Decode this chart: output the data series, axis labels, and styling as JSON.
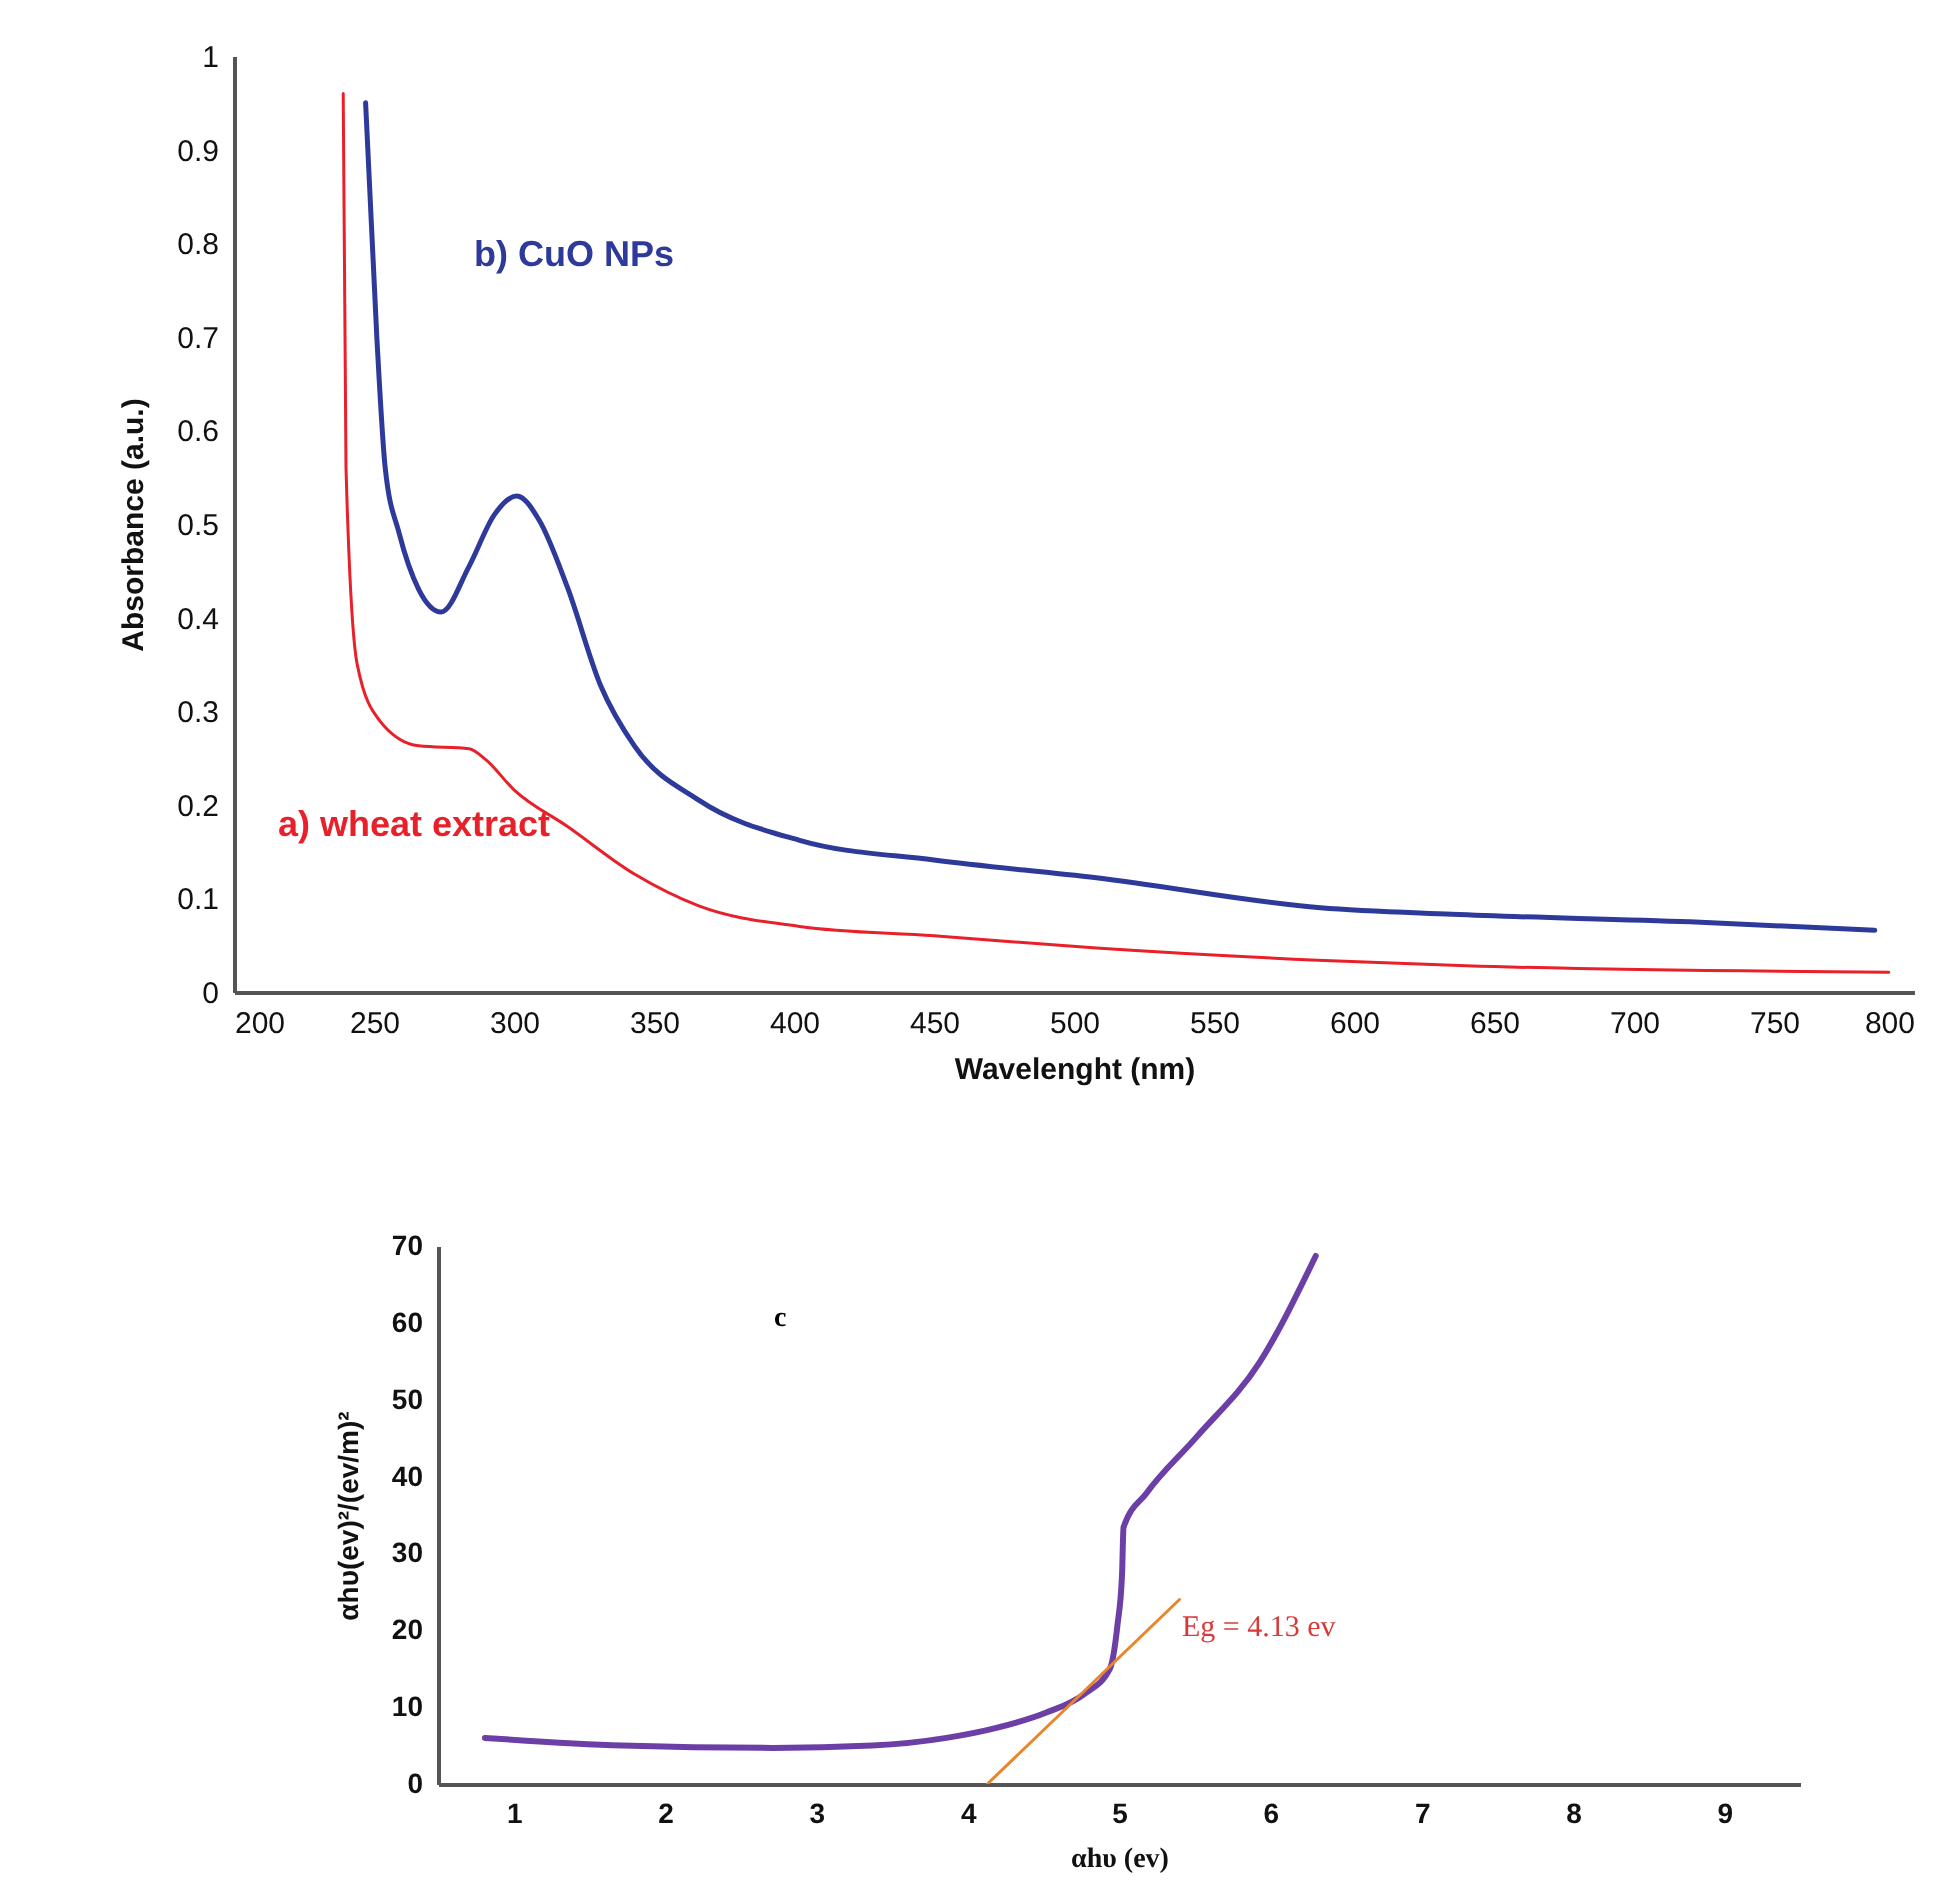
{
  "chart_data": [
    {
      "type": "line",
      "xlabel": "Wavelenght (nm)",
      "ylabel": "Absorbance (a.u.)",
      "xlim": [
        200,
        800
      ],
      "xticks": [
        200,
        250,
        300,
        350,
        400,
        450,
        500,
        550,
        600,
        650,
        700,
        750,
        800
      ],
      "ylim": [
        0,
        1
      ],
      "yticks": [
        0,
        0.1,
        0.2,
        0.3,
        0.4,
        0.5,
        0.6,
        0.7,
        0.8,
        0.9,
        1
      ],
      "grid": false,
      "legend": false,
      "series": [
        {
          "name": "b) CuO NPs",
          "color": "#2e3a9a",
          "x": [
            247,
            251,
            254,
            259,
            266,
            274,
            284,
            293,
            301,
            309,
            319,
            331,
            343,
            366,
            402,
            450,
            508,
            588,
            635,
            720,
            786
          ],
          "values": [
            0.95,
            0.7,
            0.56,
            0.49,
            0.43,
            0.406,
            0.455,
            0.51,
            0.53,
            0.504,
            0.433,
            0.327,
            0.263,
            0.205,
            0.162,
            0.141,
            0.122,
            0.09,
            0.083,
            0.075,
            0.066
          ]
        },
        {
          "name": "a) wheat extract",
          "color": "#e8202a",
          "x": [
            239,
            240,
            244,
            252,
            266,
            284,
            290,
            300,
            319,
            343,
            366,
            402,
            450,
            508,
            587,
            640,
            791
          ],
          "values": [
            0.96,
            0.56,
            0.35,
            0.29,
            0.263,
            0.26,
            0.248,
            0.216,
            0.177,
            0.126,
            0.092,
            0.07,
            0.06,
            0.047,
            0.034,
            0.028,
            0.021
          ]
        }
      ]
    },
    {
      "type": "line",
      "xlabel": "αhυ (ev)",
      "ylabel": "αhυ(ev)²/(ev/m)²",
      "xlim": [
        0.5,
        9.5
      ],
      "xticks": [
        1,
        2,
        3,
        4,
        5,
        6,
        7,
        8,
        9
      ],
      "ylim": [
        0,
        70
      ],
      "yticks": [
        0,
        10,
        20,
        30,
        40,
        50,
        60,
        70
      ],
      "grid": false,
      "legend": false,
      "annotations": [
        "c",
        "Eg = 4.13 ev"
      ],
      "series": [
        {
          "color": "#6b3fa6",
          "x": [
            0.81,
            1.72,
            2.71,
            3.37,
            3.86,
            4.19,
            4.52,
            4.77,
            4.94,
            4.99,
            5.02,
            5.03,
            5.18,
            5.51,
            5.93,
            6.3
          ],
          "values": [
            6.0,
            5.0,
            4.7,
            5.0,
            6.0,
            7.3,
            9.3,
            11.7,
            15.0,
            20.7,
            27.2,
            33.4,
            37.8,
            45.1,
            54.9,
            68.7
          ]
        },
        {
          "type": "line",
          "color": "#e8862a",
          "x": [
            4.13,
            5.4
          ],
          "values": [
            0,
            24
          ]
        }
      ]
    }
  ]
}
